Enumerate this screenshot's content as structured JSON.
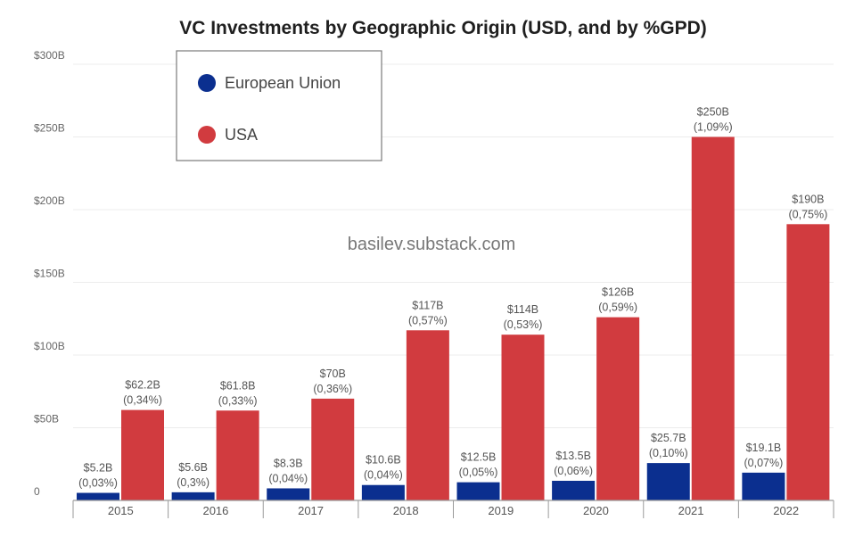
{
  "chart_data": {
    "type": "bar",
    "title": "VC Investments by Geographic Origin (USD, and by %GPD)",
    "watermark": "basilev.substack.com",
    "categories": [
      "2015",
      "2016",
      "2017",
      "2018",
      "2019",
      "2020",
      "2021",
      "2022"
    ],
    "series": [
      {
        "name": "European Union",
        "color": "#0b2f8f",
        "values": [
          5.2,
          5.6,
          8.3,
          10.6,
          12.5,
          13.5,
          25.7,
          19.1
        ],
        "labels": [
          "$5.2B",
          "$5.6B",
          "$8.3B",
          "$10.6B",
          "$12.5B",
          "$13.5B",
          "$25.7B",
          "$19.1B"
        ],
        "sublabels": [
          "(0,03%)",
          "(0,3%)",
          "(0,04%)",
          "(0,04%)",
          "(0,05%)",
          "(0,06%)",
          "(0,10%)",
          "(0,07%)"
        ]
      },
      {
        "name": "USA",
        "color": "#d13b3f",
        "values": [
          62.2,
          61.8,
          70,
          117,
          114,
          126,
          250,
          190
        ],
        "labels": [
          "$62.2B",
          "$61.8B",
          "$70B",
          "$117B",
          "$114B",
          "$126B",
          "$250B",
          "$190B"
        ],
        "sublabels": [
          "(0,34%)",
          "(0,33%)",
          "(0,36%)",
          "(0,57%)",
          "(0,53%)",
          "(0,59%)",
          "(1,09%)",
          "(0,75%)"
        ]
      }
    ],
    "ylim": [
      0,
      300
    ],
    "yticks": [
      0,
      50,
      100,
      150,
      200,
      250,
      300
    ],
    "ytick_labels": [
      "0",
      "$50B",
      "$100B",
      "$150B",
      "$200B",
      "$250B",
      "$300B"
    ],
    "grid": true,
    "legend_position": "top-left"
  }
}
